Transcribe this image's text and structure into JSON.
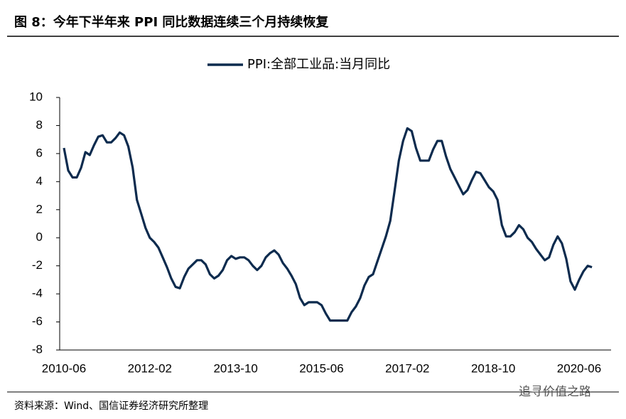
{
  "header": {
    "title": "图 8：今年下半年来 PPI 同比数据连续三个月持续恢复"
  },
  "chart_data": {
    "type": "line",
    "categories": [
      "2010-06",
      null,
      null,
      null,
      null,
      null,
      null,
      null,
      null,
      null,
      null,
      null,
      null,
      null,
      null,
      null,
      null,
      null,
      null,
      null,
      "2012-02",
      null,
      null,
      null,
      null,
      null,
      null,
      null,
      null,
      null,
      null,
      null,
      null,
      null,
      null,
      null,
      null,
      null,
      null,
      null,
      "2013-10",
      null,
      null,
      null,
      null,
      null,
      null,
      null,
      null,
      null,
      null,
      null,
      null,
      null,
      null,
      null,
      null,
      null,
      null,
      null,
      "2015-06",
      null,
      null,
      null,
      null,
      null,
      null,
      null,
      null,
      null,
      null,
      null,
      null,
      null,
      null,
      null,
      null,
      null,
      null,
      null,
      "2017-02",
      null,
      null,
      null,
      null,
      null,
      null,
      null,
      null,
      null,
      null,
      null,
      null,
      null,
      null,
      null,
      null,
      null,
      null,
      null,
      "2018-10",
      null,
      null,
      null,
      null,
      null,
      null,
      null,
      null,
      null,
      null,
      null,
      null,
      null,
      null,
      null,
      null,
      null,
      null,
      null,
      "2020-06",
      null,
      null,
      null
    ],
    "series": [
      {
        "name": "PPI:全部工业品:当月同比",
        "color": "#0d2b4e",
        "values": [
          6.4,
          4.8,
          4.3,
          4.3,
          5.0,
          6.1,
          5.9,
          6.6,
          7.2,
          7.3,
          6.8,
          6.8,
          7.1,
          7.5,
          7.3,
          6.5,
          5.0,
          2.7,
          1.7,
          0.7,
          0.0,
          -0.3,
          -0.7,
          -1.4,
          -2.1,
          -2.9,
          -3.5,
          -3.6,
          -2.8,
          -2.2,
          -1.9,
          -1.6,
          -1.6,
          -1.9,
          -2.6,
          -2.9,
          -2.7,
          -2.3,
          -1.6,
          -1.3,
          -1.5,
          -1.4,
          -1.4,
          -1.6,
          -2.0,
          -2.3,
          -2.0,
          -1.4,
          -1.1,
          -0.9,
          -1.2,
          -1.8,
          -2.2,
          -2.7,
          -3.3,
          -4.3,
          -4.8,
          -4.6,
          -4.6,
          -4.6,
          -4.8,
          -5.4,
          -5.9,
          -5.9,
          -5.9,
          -5.9,
          -5.9,
          -5.3,
          -4.9,
          -4.3,
          -3.4,
          -2.8,
          -2.6,
          -1.7,
          -0.8,
          0.1,
          1.2,
          3.3,
          5.5,
          6.9,
          7.8,
          7.6,
          6.4,
          5.5,
          5.5,
          5.5,
          6.3,
          6.9,
          6.9,
          5.8,
          4.9,
          4.3,
          3.7,
          3.1,
          3.4,
          4.1,
          4.7,
          4.6,
          4.1,
          3.6,
          3.3,
          2.7,
          0.9,
          0.1,
          0.1,
          0.4,
          0.9,
          0.6,
          0.0,
          -0.3,
          -0.8,
          -1.2,
          -1.6,
          -1.4,
          -0.5,
          0.1,
          -0.4,
          -1.5,
          -3.1,
          -3.7,
          -3.0,
          -2.4,
          -2.0,
          -2.1
        ]
      }
    ],
    "ylim": [
      -8,
      10
    ],
    "yticks": [
      -8,
      -6,
      -4,
      -2,
      0,
      2,
      4,
      6,
      8,
      10
    ]
  },
  "footer": {
    "source": "资料来源：Wind、国信证券经济研究所整理",
    "watermark": "追寻价值之路"
  }
}
